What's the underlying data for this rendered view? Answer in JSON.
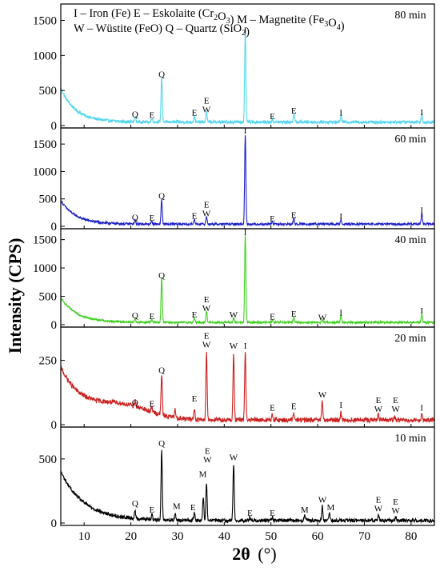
{
  "chart_data": {
    "type": "line",
    "ylabel": "Intensity (CPS)",
    "xlabel_main": "2θ",
    "xlabel_unit": "(°)",
    "xlim": [
      5,
      85
    ],
    "x_ticks": [
      10,
      20,
      30,
      40,
      50,
      60,
      70,
      80
    ],
    "legend_lines": [
      [
        {
          "t": "I – Iron (Fe)   E – Eskolaite (Cr"
        },
        {
          "t": "2",
          "sub": true
        },
        {
          "t": "O"
        },
        {
          "t": "3",
          "sub": true
        },
        {
          "t": ")  M – Magnetite (Fe"
        },
        {
          "t": "3",
          "sub": true
        },
        {
          "t": "O"
        },
        {
          "t": "4",
          "sub": true
        },
        {
          "t": ")"
        }
      ],
      [
        {
          "t": "W – Wüstite (FeO)   Q – Quartz (SiO"
        },
        {
          "t": "2",
          "sub": true
        },
        {
          "t": ")"
        }
      ]
    ],
    "phase_legend": {
      "I": "Iron (Fe)",
      "E": "Eskolaite (Cr2O3)",
      "M": "Magnetite (Fe3O4)",
      "W": "Wüstite (FeO)",
      "Q": "Quartz (SiO2)"
    },
    "series": [
      {
        "name": "80 min",
        "color": "#55d6ec",
        "ylim": [
          0,
          1700
        ],
        "y_ticks": [
          0,
          500,
          1000,
          1500
        ],
        "bg_start": 480,
        "bg_decay": 3.2,
        "bg_floor": 50,
        "noise": 22,
        "humps": [],
        "peaks": [
          [
            20.9,
            80
          ],
          [
            24.5,
            60
          ],
          [
            26.6,
            650
          ],
          [
            33.6,
            90
          ],
          [
            36.2,
            150
          ],
          [
            44.5,
            1280
          ],
          [
            50.3,
            40
          ],
          [
            54.9,
            130
          ],
          [
            65.0,
            100
          ],
          [
            82.3,
            110
          ]
        ],
        "labels": [
          {
            "x": 20.9,
            "y": 120,
            "t": [
              "Q"
            ]
          },
          {
            "x": 24.5,
            "y": 110,
            "t": [
              "E"
            ]
          },
          {
            "x": 26.6,
            "y": 690,
            "t": [
              "Q"
            ]
          },
          {
            "x": 33.6,
            "y": 140,
            "t": [
              "E"
            ]
          },
          {
            "x": 36.2,
            "y": 190,
            "t": [
              "E",
              "W"
            ]
          },
          {
            "x": 44.5,
            "y": 1320,
            "t": [
              "I"
            ]
          },
          {
            "x": 50.3,
            "y": 90,
            "t": [
              "E"
            ]
          },
          {
            "x": 54.9,
            "y": 170,
            "t": [
              "E"
            ]
          },
          {
            "x": 65.0,
            "y": 140,
            "t": [
              "I"
            ]
          },
          {
            "x": 82.3,
            "y": 150,
            "t": [
              "I"
            ]
          }
        ]
      },
      {
        "name": "60 min",
        "color": "#2020c8",
        "ylim": [
          0,
          1750
        ],
        "y_ticks": [
          0,
          500,
          1000,
          1500
        ],
        "bg_start": 430,
        "bg_decay": 3.2,
        "bg_floor": 40,
        "noise": 20,
        "humps": [],
        "peaks": [
          [
            20.9,
            70
          ],
          [
            24.5,
            50
          ],
          [
            26.6,
            450
          ],
          [
            33.6,
            90
          ],
          [
            36.2,
            140
          ],
          [
            44.5,
            1650
          ],
          [
            50.3,
            40
          ],
          [
            54.9,
            110
          ],
          [
            65.0,
            90
          ],
          [
            82.3,
            200
          ]
        ],
        "labels": [
          {
            "x": 20.9,
            "y": 110,
            "t": [
              "Q"
            ]
          },
          {
            "x": 24.5,
            "y": 100,
            "t": [
              "E"
            ]
          },
          {
            "x": 26.6,
            "y": 500,
            "t": [
              "Q"
            ]
          },
          {
            "x": 33.6,
            "y": 140,
            "t": [
              "E"
            ]
          },
          {
            "x": 36.2,
            "y": 180,
            "t": [
              "E",
              "W"
            ]
          },
          {
            "x": 44.5,
            "y": 1690,
            "t": [
              "I"
            ]
          },
          {
            "x": 50.3,
            "y": 90,
            "t": [
              "E"
            ]
          },
          {
            "x": 54.9,
            "y": 150,
            "t": [
              "E"
            ]
          },
          {
            "x": 65.0,
            "y": 130,
            "t": [
              "I"
            ]
          },
          {
            "x": 82.3,
            "y": 240,
            "t": [
              "I"
            ]
          }
        ]
      },
      {
        "name": "40 min",
        "color": "#3fd020",
        "ylim": [
          0,
          1650
        ],
        "y_ticks": [
          0,
          500,
          1000,
          1500
        ],
        "bg_start": 430,
        "bg_decay": 3.5,
        "bg_floor": 40,
        "noise": 18,
        "humps": [],
        "peaks": [
          [
            20.9,
            70
          ],
          [
            24.5,
            50
          ],
          [
            26.6,
            780
          ],
          [
            33.6,
            80
          ],
          [
            36.2,
            200
          ],
          [
            42.0,
            80
          ],
          [
            44.5,
            1550
          ],
          [
            50.3,
            40
          ],
          [
            54.9,
            100
          ],
          [
            61.0,
            40
          ],
          [
            65.0,
            120
          ],
          [
            82.3,
            160
          ]
        ],
        "labels": [
          {
            "x": 20.9,
            "y": 110,
            "t": [
              "Q"
            ]
          },
          {
            "x": 24.5,
            "y": 100,
            "t": [
              "E"
            ]
          },
          {
            "x": 26.6,
            "y": 820,
            "t": [
              "Q"
            ]
          },
          {
            "x": 33.6,
            "y": 130,
            "t": [
              "E"
            ]
          },
          {
            "x": 36.2,
            "y": 240,
            "t": [
              "E",
              "W"
            ]
          },
          {
            "x": 42.0,
            "y": 130,
            "t": [
              "W"
            ]
          },
          {
            "x": 44.5,
            "y": 1590,
            "t": [
              "I"
            ]
          },
          {
            "x": 50.3,
            "y": 90,
            "t": [
              "E"
            ]
          },
          {
            "x": 54.9,
            "y": 140,
            "t": [
              "E"
            ]
          },
          {
            "x": 61.0,
            "y": 80,
            "t": [
              "W"
            ]
          },
          {
            "x": 65.0,
            "y": 160,
            "t": [
              "I"
            ]
          },
          {
            "x": 82.3,
            "y": 200,
            "t": [
              "I"
            ]
          }
        ]
      },
      {
        "name": "20 min",
        "color": "#cc2020",
        "ylim": [
          0,
          370
        ],
        "y_ticks": [
          0,
          250
        ],
        "bg_start": 200,
        "bg_decay": 5.0,
        "bg_floor": 18,
        "noise": 9,
        "humps": [
          [
            18,
            50,
            6
          ]
        ],
        "peaks": [
          [
            20.9,
            25
          ],
          [
            24.5,
            20
          ],
          [
            26.6,
            160
          ],
          [
            29.5,
            30
          ],
          [
            33.6,
            40
          ],
          [
            36.2,
            270
          ],
          [
            42.0,
            260
          ],
          [
            44.5,
            270
          ],
          [
            50.3,
            20
          ],
          [
            54.9,
            25
          ],
          [
            61.0,
            70
          ],
          [
            65.0,
            30
          ],
          [
            73.0,
            20
          ],
          [
            76.5,
            15
          ],
          [
            82.3,
            20
          ]
        ],
        "labels": [
          {
            "x": 20.9,
            "y": 75,
            "t": [
              "Q"
            ]
          },
          {
            "x": 24.5,
            "y": 70,
            "t": [
              "E"
            ]
          },
          {
            "x": 26.6,
            "y": 200,
            "t": [
              "Q"
            ]
          },
          {
            "x": 33.6,
            "y": 90,
            "t": [
              "E"
            ]
          },
          {
            "x": 36.2,
            "y": 300,
            "t": [
              "E",
              "W"
            ]
          },
          {
            "x": 42.0,
            "y": 295,
            "t": [
              "W"
            ]
          },
          {
            "x": 44.5,
            "y": 295,
            "t": [
              "I"
            ]
          },
          {
            "x": 50.3,
            "y": 55,
            "t": [
              "E"
            ]
          },
          {
            "x": 54.9,
            "y": 60,
            "t": [
              "E"
            ]
          },
          {
            "x": 61.0,
            "y": 105,
            "t": [
              "W"
            ]
          },
          {
            "x": 65.0,
            "y": 65,
            "t": [
              "I"
            ]
          },
          {
            "x": 73.0,
            "y": 50,
            "t": [
              "E",
              "W"
            ]
          },
          {
            "x": 76.7,
            "y": 50,
            "t": [
              "E",
              "W"
            ]
          },
          {
            "x": 82.3,
            "y": 55,
            "t": [
              "I"
            ]
          }
        ]
      },
      {
        "name": "10 min",
        "color": "#000000",
        "ylim": [
          0,
          730
        ],
        "y_ticks": [
          0,
          500
        ],
        "bg_start": 380,
        "bg_decay": 5.0,
        "bg_floor": 20,
        "noise": 14,
        "humps": [],
        "peaks": [
          [
            20.9,
            60
          ],
          [
            24.5,
            40
          ],
          [
            26.6,
            550
          ],
          [
            29.5,
            60
          ],
          [
            33.6,
            60
          ],
          [
            35.5,
            180
          ],
          [
            36.2,
            300
          ],
          [
            42.0,
            450
          ],
          [
            45.5,
            25
          ],
          [
            50.3,
            25
          ],
          [
            57.2,
            40
          ],
          [
            61.0,
            110
          ],
          [
            62.5,
            60
          ],
          [
            73.0,
            50
          ],
          [
            76.7,
            30
          ]
        ],
        "labels": [
          {
            "x": 20.9,
            "y": 130,
            "t": [
              "Q"
            ]
          },
          {
            "x": 24.5,
            "y": 80,
            "t": [
              "E"
            ]
          },
          {
            "x": 26.6,
            "y": 600,
            "t": [
              "Q"
            ]
          },
          {
            "x": 29.8,
            "y": 110,
            "t": [
              "M"
            ]
          },
          {
            "x": 33.3,
            "y": 100,
            "t": [
              "E"
            ]
          },
          {
            "x": 35.4,
            "y": 360,
            "t": [
              "M"
            ]
          },
          {
            "x": 36.4,
            "y": 470,
            "t": [
              "E",
              "W"
            ]
          },
          {
            "x": 42.0,
            "y": 490,
            "t": [
              "W"
            ]
          },
          {
            "x": 45.5,
            "y": 55,
            "t": [
              "E"
            ]
          },
          {
            "x": 50.3,
            "y": 55,
            "t": [
              "E"
            ]
          },
          {
            "x": 57.2,
            "y": 80,
            "t": [
              "M"
            ]
          },
          {
            "x": 61.0,
            "y": 160,
            "t": [
              "W"
            ]
          },
          {
            "x": 62.8,
            "y": 100,
            "t": [
              "M"
            ]
          },
          {
            "x": 73.0,
            "y": 90,
            "t": [
              "E",
              "W"
            ]
          },
          {
            "x": 76.7,
            "y": 75,
            "t": [
              "E",
              "W"
            ]
          }
        ]
      }
    ]
  }
}
